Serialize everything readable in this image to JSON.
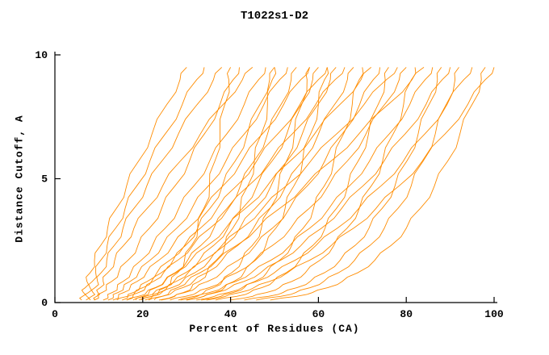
{
  "chart_data": {
    "type": "line",
    "title": "T1022s1-D2",
    "xlabel": "Percent of Residues (CA)",
    "ylabel": "Distance Cutoff, A",
    "xlim": [
      0,
      100
    ],
    "ylim": [
      0,
      10
    ],
    "x_ticks": [
      0,
      20,
      40,
      60,
      80,
      100
    ],
    "y_ticks": [
      0,
      5,
      10
    ],
    "grid": false,
    "legend": "none",
    "line_color": "#ff8c00",
    "axis_color": "#000000",
    "y_levels": [
      0.1,
      0.25,
      0.4,
      0.6,
      0.85,
      1.2,
      1.7,
      2.3,
      3.0,
      3.8,
      4.7,
      5.7,
      6.8,
      8.0,
      9.0,
      9.5
    ],
    "series": [
      {
        "x": [
          6.1,
          6.3,
          6.5,
          6.9,
          7.3,
          8.0,
          9.0,
          10.4,
          12.0,
          14.0,
          16.3,
          19.0,
          22.1,
          25.5,
          28.5,
          30.0
        ]
      },
      {
        "x": [
          7.1,
          7.3,
          7.6,
          8.0,
          8.5,
          9.3,
          10.4,
          11.9,
          13.8,
          16.0,
          18.6,
          21.6,
          25.1,
          29.0,
          32.3,
          34.0
        ]
      },
      {
        "x": [
          8.1,
          8.4,
          8.7,
          9.1,
          9.7,
          10.5,
          11.8,
          13.5,
          15.5,
          18.0,
          20.9,
          24.3,
          28.1,
          32.4,
          36.1,
          38.0
        ]
      },
      {
        "x": [
          8.9,
          9.9,
          10.7,
          11.7,
          12.9,
          14.5,
          16.6,
          18.9,
          21.5,
          24.3,
          27.3,
          30.6,
          34.0,
          37.6,
          40.6,
          42.0
        ]
      },
      {
        "x": [
          9.2,
          9.5,
          9.8,
          10.3,
          11.0,
          12.0,
          13.6,
          15.6,
          18.0,
          21.0,
          24.5,
          28.5,
          33.1,
          38.3,
          42.7,
          45.0
        ]
      },
      {
        "x": [
          11.0,
          12.1,
          13.0,
          14.2,
          15.5,
          17.3,
          19.6,
          22.2,
          25.1,
          28.2,
          31.6,
          35.2,
          39.1,
          43.1,
          46.4,
          48.0
        ]
      },
      {
        "x": [
          14.1,
          16.5,
          18.2,
          20.0,
          22.0,
          24.2,
          26.9,
          29.7,
          32.5,
          35.3,
          38.1,
          41.0,
          43.8,
          46.7,
          48.9,
          50.0
        ]
      },
      {
        "x": [
          12.1,
          13.3,
          14.3,
          15.6,
          17.1,
          19.0,
          21.6,
          24.5,
          27.7,
          31.2,
          34.9,
          38.9,
          43.1,
          47.6,
          51.2,
          53.0
        ]
      },
      {
        "x": [
          16.4,
          19.0,
          20.8,
          22.8,
          24.9,
          27.3,
          30.2,
          33.2,
          36.2,
          39.2,
          42.2,
          45.3,
          48.4,
          51.5,
          53.8,
          55.0
        ]
      },
      {
        "x": [
          13.2,
          14.5,
          15.6,
          17.1,
          18.7,
          20.8,
          23.6,
          26.8,
          30.3,
          34.1,
          38.2,
          42.5,
          47.2,
          52.1,
          56.0,
          58.0
        ]
      },
      {
        "x": [
          17.8,
          20.6,
          22.6,
          24.8,
          27.1,
          29.7,
          32.9,
          36.1,
          39.4,
          42.7,
          46.0,
          49.4,
          52.8,
          56.1,
          58.7,
          60.0
        ]
      },
      {
        "x": [
          15.3,
          16.6,
          17.8,
          19.3,
          21.0,
          23.2,
          26.1,
          29.5,
          33.1,
          37.0,
          41.3,
          45.9,
          50.7,
          55.8,
          60.0,
          62.0
        ]
      },
      {
        "x": [
          19.1,
          22.1,
          24.3,
          26.6,
          29.0,
          31.8,
          35.2,
          38.6,
          42.1,
          45.6,
          49.2,
          52.8,
          56.3,
          59.9,
          62.7,
          64.0
        ]
      },
      {
        "x": [
          16.3,
          17.8,
          19.0,
          20.6,
          22.4,
          24.7,
          27.9,
          31.4,
          35.3,
          39.5,
          44.0,
          48.9,
          54.0,
          59.4,
          63.8,
          66.0
        ]
      },
      {
        "x": [
          21.3,
          24.4,
          26.7,
          29.1,
          31.5,
          34.5,
          38.0,
          41.6,
          45.2,
          48.9,
          52.6,
          56.3,
          60.0,
          63.7,
          66.6,
          68.0
        ]
      },
      {
        "x": [
          33.3,
          37.8,
          40.5,
          43.1,
          45.5,
          48.2,
          51.1,
          53.9,
          56.5,
          58.9,
          61.3,
          63.5,
          65.7,
          67.7,
          69.3,
          70.0
        ]
      },
      {
        "x": [
          18.4,
          20.0,
          21.4,
          23.0,
          25.0,
          27.5,
          30.9,
          34.7,
          38.9,
          43.4,
          48.3,
          53.5,
          59.1,
          64.9,
          69.7,
          72.0
        ]
      },
      {
        "x": [
          23.7,
          27.1,
          29.5,
          32.1,
          34.7,
          37.9,
          41.7,
          45.6,
          49.5,
          53.4,
          57.4,
          61.4,
          65.4,
          69.4,
          72.5,
          74.0
        ]
      },
      {
        "x": [
          36.6,
          41.4,
          44.3,
          47.1,
          49.7,
          52.6,
          55.7,
          58.7,
          61.5,
          64.1,
          66.7,
          69.0,
          71.4,
          73.6,
          75.2,
          76.0
        ]
      },
      {
        "x": [
          20.5,
          22.2,
          23.7,
          25.5,
          27.6,
          30.3,
          33.9,
          38.0,
          42.5,
          47.3,
          52.6,
          58.2,
          64.1,
          70.4,
          75.5,
          78.0
        ]
      },
      {
        "x": [
          26.2,
          29.7,
          32.3,
          35.1,
          37.9,
          41.3,
          45.4,
          49.5,
          53.7,
          57.9,
          62.2,
          66.5,
          70.8,
          75.1,
          78.4,
          80.0
        ]
      },
      {
        "x": [
          39.8,
          45.0,
          48.1,
          51.1,
          53.9,
          57.0,
          60.3,
          63.5,
          66.5,
          69.3,
          72.0,
          74.6,
          77.0,
          79.4,
          81.2,
          82.0
        ]
      },
      {
        "x": [
          22.6,
          24.4,
          26.0,
          27.9,
          30.1,
          33.0,
          36.9,
          41.3,
          46.1,
          51.2,
          56.8,
          62.8,
          69.2,
          75.9,
          81.3,
          84.0
        ]
      },
      {
        "x": [
          28.6,
          32.4,
          35.1,
          38.1,
          41.1,
          44.7,
          49.1,
          53.5,
          58.0,
          62.4,
          67.0,
          71.6,
          76.1,
          80.8,
          84.3,
          86.0
        ]
      },
      {
        "x": [
          43.1,
          48.6,
          51.9,
          55.1,
          58.1,
          61.3,
          64.9,
          68.3,
          71.5,
          74.5,
          77.4,
          80.1,
          82.7,
          85.2,
          87.1,
          88.0
        ]
      },
      {
        "x": [
          29.9,
          33.9,
          36.7,
          39.8,
          43.0,
          46.8,
          51.3,
          56.0,
          60.7,
          65.3,
          70.1,
          74.9,
          79.7,
          84.5,
          88.2,
          90.0
        ]
      },
      {
        "x": [
          45.8,
          51.4,
          54.8,
          58.1,
          61.2,
          64.5,
          68.2,
          71.7,
          75.0,
          78.1,
          81.1,
          83.8,
          86.6,
          89.1,
          91.1,
          92.0
        ]
      },
      {
        "x": [
          32.2,
          36.3,
          39.4,
          42.6,
          45.9,
          49.9,
          54.6,
          59.4,
          64.3,
          69.2,
          74.2,
          79.3,
          84.2,
          89.3,
          93.1,
          95.0
        ]
      },
      {
        "x": [
          49.0,
          55.0,
          58.6,
          62.1,
          65.4,
          68.9,
          72.8,
          76.5,
          80.0,
          83.2,
          86.4,
          89.4,
          92.2,
          95.0,
          97.1,
          98.0
        ]
      },
      {
        "x": [
          34.5,
          38.8,
          42.0,
          45.3,
          48.8,
          52.9,
          57.9,
          62.9,
          68.0,
          73.1,
          78.3,
          83.6,
          88.8,
          94.0,
          98.0,
          100.0
        ]
      },
      {
        "x": [
          19.6,
          22.1,
          23.6,
          25.1,
          26.4,
          27.9,
          29.5,
          31.1,
          32.5,
          33.9,
          35.2,
          36.4,
          37.6,
          38.7,
          39.6,
          40.0
        ]
      },
      {
        "x": [
          24.2,
          27.3,
          29.2,
          31.1,
          32.8,
          34.6,
          36.7,
          38.7,
          40.5,
          42.2,
          43.9,
          45.4,
          47.0,
          48.4,
          49.5,
          50.0
        ]
      },
      {
        "x": [
          28.1,
          31.7,
          33.9,
          36.1,
          38.1,
          40.2,
          42.6,
          44.9,
          47.0,
          49.0,
          50.9,
          52.7,
          54.5,
          56.2,
          57.4,
          58.0
        ]
      },
      {
        "x": [
          30.0,
          33.9,
          36.3,
          38.6,
          40.7,
          43.0,
          45.6,
          48.0,
          50.3,
          52.4,
          54.4,
          56.4,
          58.2,
          60.0,
          61.4,
          62.0
        ]
      }
    ]
  }
}
